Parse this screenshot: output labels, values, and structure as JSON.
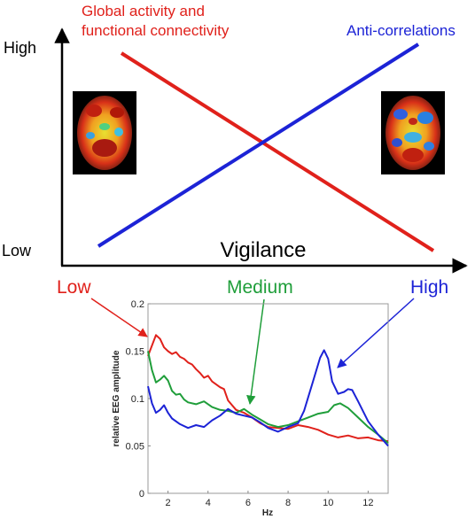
{
  "chart_data": [
    {
      "type": "line",
      "title": "",
      "xlabel": "Vigilance",
      "ylabel": "",
      "y_tick_labels": [
        "High",
        "Low"
      ],
      "x_level_labels": [
        {
          "text": "Low",
          "color": "#e0211b"
        },
        {
          "text": "Medium",
          "color": "#1f9e3a"
        },
        {
          "text": "High",
          "color": "#1c23d6"
        }
      ],
      "series": [
        {
          "name": "Global activity and functional connectivity",
          "name_lines": [
            "Global activity and",
            "functional connectivity"
          ],
          "color": "#e0211b",
          "trend": "decreasing",
          "values": [
            {
              "vigilance": "Low",
              "level": "High"
            },
            {
              "vigilance": "High",
              "level": "Low"
            }
          ]
        },
        {
          "name": "Anti-correlations",
          "name_lines": [
            "Anti-correlations"
          ],
          "color": "#1c23d6",
          "trend": "increasing",
          "values": [
            {
              "vigilance": "Low",
              "level": "Low"
            },
            {
              "vigilance": "High",
              "level": "High"
            }
          ]
        }
      ],
      "images": [
        {
          "name": "brain-map-low-vigilance",
          "position": "left"
        },
        {
          "name": "brain-map-high-vigilance",
          "position": "right"
        }
      ]
    },
    {
      "type": "line",
      "title": "",
      "xlabel": "Hz",
      "ylabel": "relative EEG amplitude",
      "xlim": [
        1,
        13
      ],
      "ylim": [
        0,
        0.2
      ],
      "xticks": [
        2,
        4,
        6,
        8,
        10,
        12
      ],
      "yticks": [
        0,
        0.05,
        0.1,
        0.15,
        0.2
      ],
      "xtick_labels": [
        "2",
        "4",
        "6",
        "8",
        "10",
        "12"
      ],
      "ytick_labels": [
        "0",
        "0.05",
        "0.1",
        "0.15",
        "0.2"
      ],
      "grid": false,
      "series": [
        {
          "name": "Low",
          "color": "#e0211b",
          "x": [
            1.0,
            1.2,
            1.4,
            1.6,
            1.8,
            2.0,
            2.2,
            2.4,
            2.6,
            2.8,
            3.0,
            3.2,
            3.4,
            3.6,
            3.8,
            4.0,
            4.2,
            4.4,
            4.6,
            4.8,
            5.0,
            5.4,
            5.8,
            6.2,
            6.6,
            7.0,
            7.5,
            8.0,
            8.5,
            9.0,
            9.5,
            10.0,
            10.5,
            11.0,
            11.5,
            12.0,
            12.5,
            13.0
          ],
          "y": [
            0.145,
            0.156,
            0.167,
            0.163,
            0.154,
            0.15,
            0.147,
            0.149,
            0.144,
            0.142,
            0.138,
            0.136,
            0.131,
            0.127,
            0.122,
            0.124,
            0.118,
            0.115,
            0.112,
            0.11,
            0.098,
            0.088,
            0.085,
            0.08,
            0.074,
            0.07,
            0.069,
            0.068,
            0.072,
            0.07,
            0.067,
            0.062,
            0.059,
            0.061,
            0.058,
            0.059,
            0.056,
            0.055
          ]
        },
        {
          "name": "Medium",
          "color": "#1f9e3a",
          "x": [
            1.0,
            1.2,
            1.4,
            1.6,
            1.8,
            2.0,
            2.2,
            2.4,
            2.6,
            2.8,
            3.0,
            3.4,
            3.8,
            4.2,
            4.6,
            5.0,
            5.4,
            5.8,
            6.2,
            6.6,
            7.0,
            7.5,
            8.0,
            8.5,
            9.0,
            9.5,
            10.0,
            10.3,
            10.6,
            11.0,
            11.5,
            12.0,
            12.5,
            13.0
          ],
          "y": [
            0.15,
            0.13,
            0.117,
            0.12,
            0.124,
            0.119,
            0.108,
            0.104,
            0.105,
            0.099,
            0.096,
            0.094,
            0.097,
            0.091,
            0.088,
            0.087,
            0.085,
            0.089,
            0.083,
            0.078,
            0.073,
            0.07,
            0.072,
            0.076,
            0.08,
            0.084,
            0.086,
            0.093,
            0.095,
            0.09,
            0.08,
            0.07,
            0.062,
            0.053
          ]
        },
        {
          "name": "High",
          "color": "#1c23d6",
          "x": [
            1.0,
            1.2,
            1.4,
            1.6,
            1.8,
            2.0,
            2.2,
            2.6,
            3.0,
            3.4,
            3.8,
            4.2,
            4.6,
            5.0,
            5.4,
            5.8,
            6.2,
            6.6,
            7.0,
            7.5,
            8.0,
            8.5,
            8.8,
            9.2,
            9.6,
            9.8,
            10.0,
            10.2,
            10.5,
            10.8,
            11.0,
            11.2,
            11.5,
            12.0,
            12.5,
            13.0
          ],
          "y": [
            0.113,
            0.095,
            0.085,
            0.088,
            0.093,
            0.085,
            0.079,
            0.073,
            0.069,
            0.072,
            0.07,
            0.077,
            0.082,
            0.089,
            0.084,
            0.082,
            0.08,
            0.075,
            0.069,
            0.065,
            0.07,
            0.074,
            0.087,
            0.115,
            0.143,
            0.151,
            0.142,
            0.118,
            0.105,
            0.107,
            0.11,
            0.109,
            0.097,
            0.076,
            0.062,
            0.05
          ]
        }
      ]
    }
  ]
}
